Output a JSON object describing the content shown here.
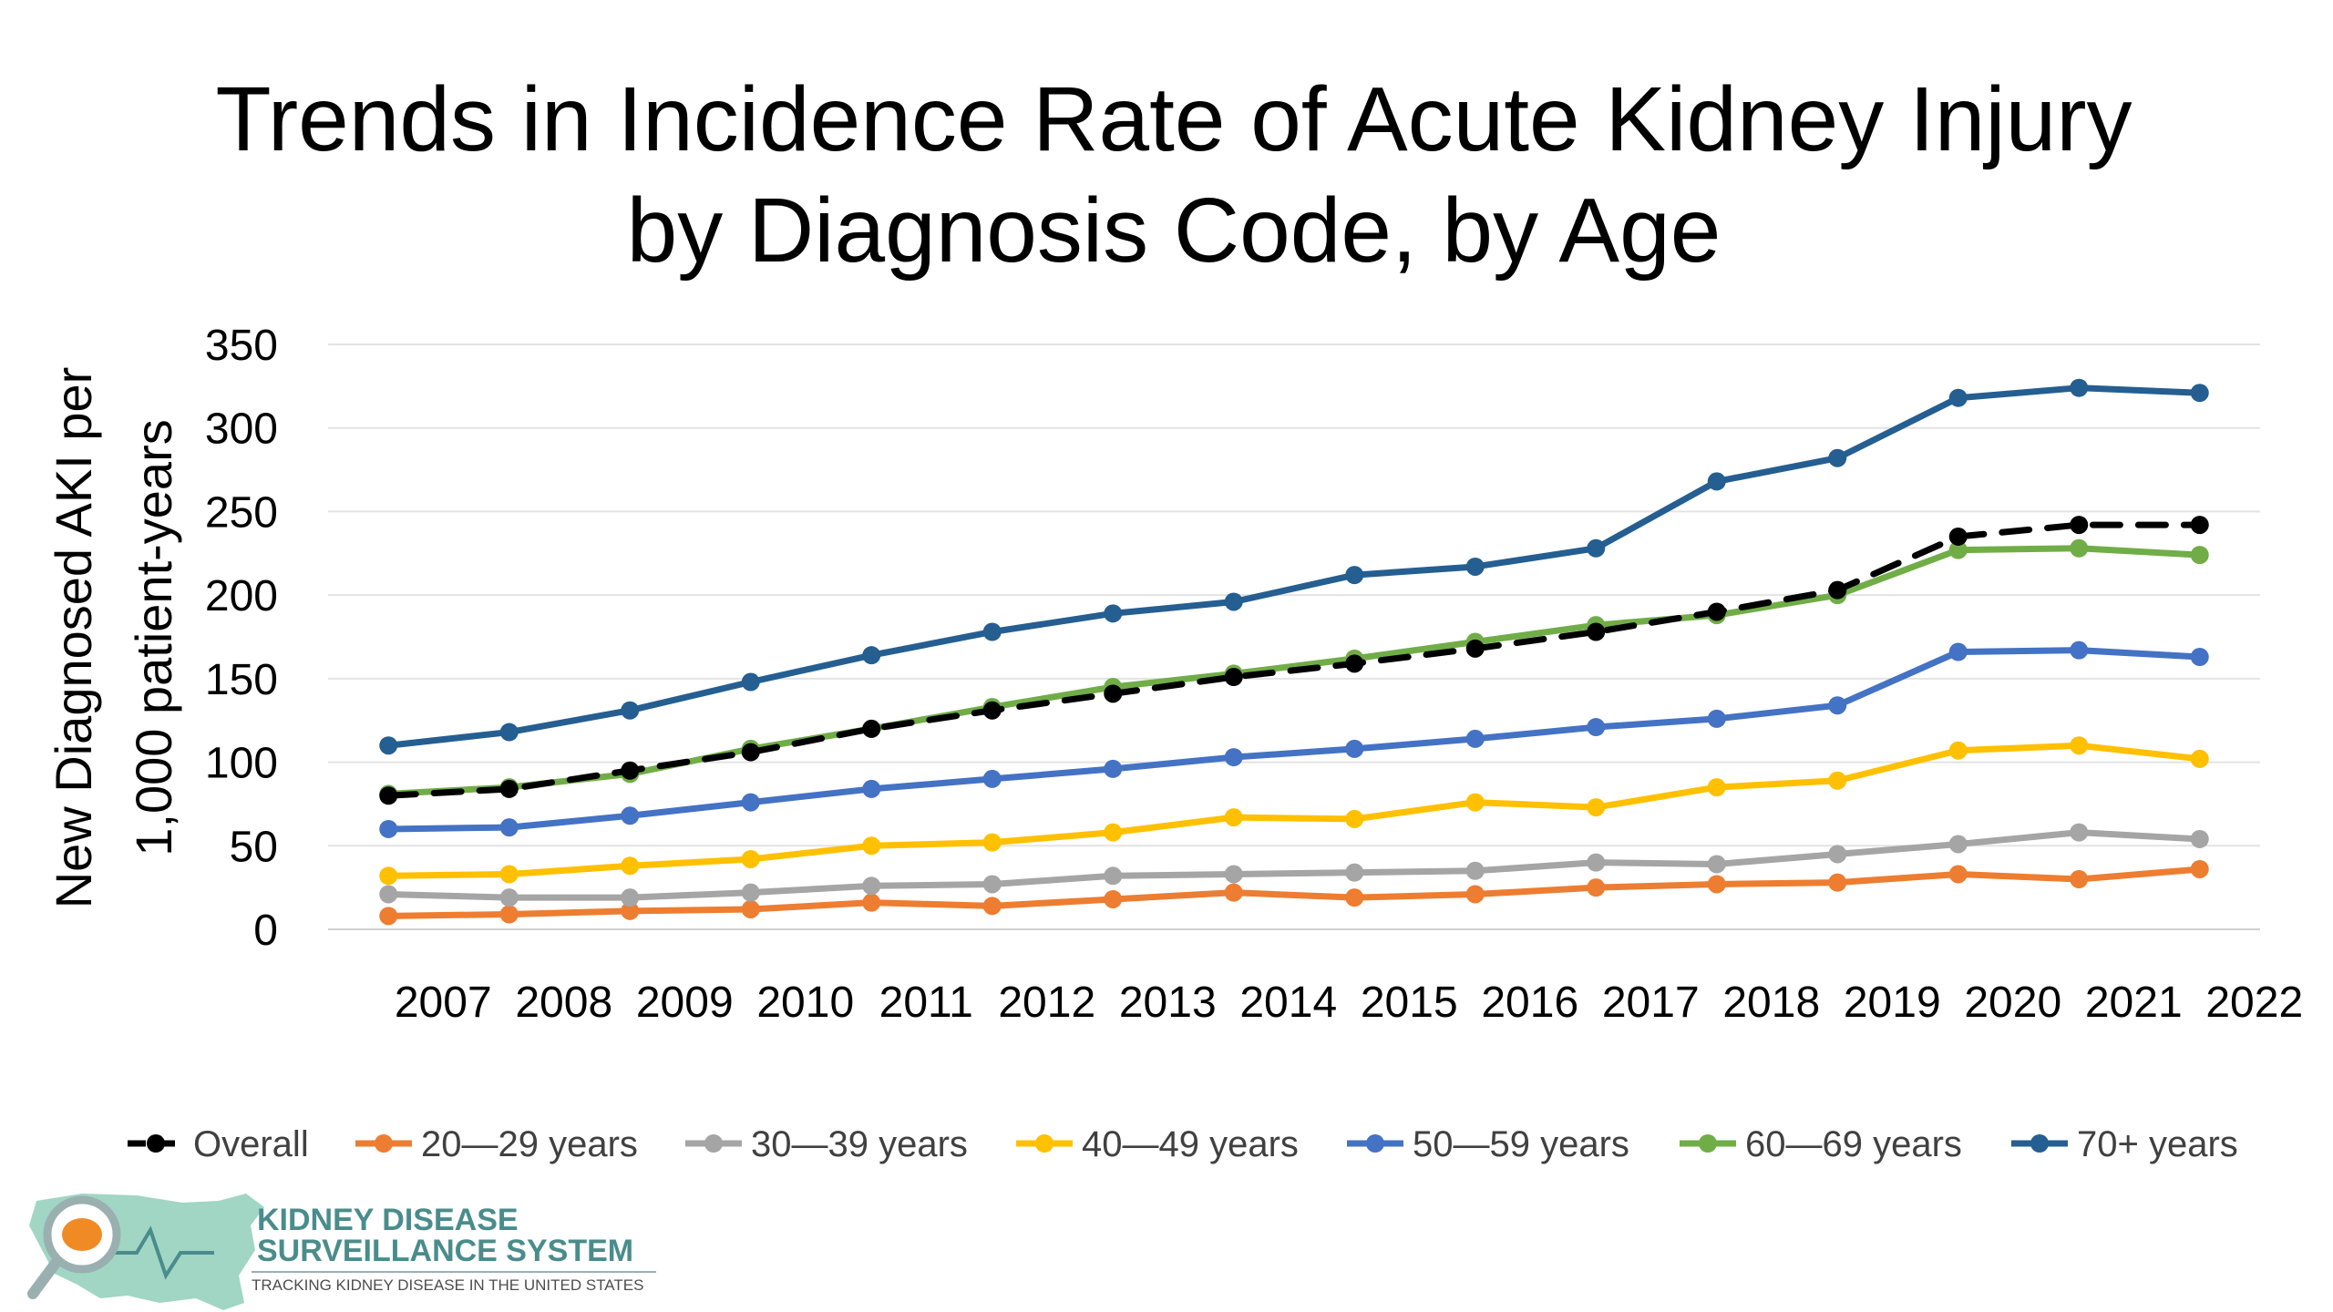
{
  "chart_data": {
    "type": "line",
    "title": [
      "Trends in Incidence Rate of Acute Kidney Injury",
      "by Diagnosis Code, by Age"
    ],
    "ylabel": [
      "New Diagnosed AKI per",
      "1,000 patient-years"
    ],
    "xlabel": "",
    "ylim": [
      0,
      350
    ],
    "yticks": [
      0,
      50,
      100,
      150,
      200,
      250,
      300,
      350
    ],
    "grid": "horizontal",
    "legend": "bottom",
    "categories": [
      "2007",
      "2008",
      "2009",
      "2010",
      "2011",
      "2012",
      "2013",
      "2014",
      "2015",
      "2016",
      "2017",
      "2018",
      "2019",
      "2020",
      "2021",
      "2022"
    ],
    "series": [
      {
        "name": "Overall",
        "color": "#000000",
        "dashed": true,
        "values": [
          80,
          84,
          95,
          106,
          120,
          131,
          141,
          151,
          159,
          168,
          178,
          190,
          203,
          235,
          242,
          242
        ]
      },
      {
        "name": "20—29 years",
        "color": "#ED7D31",
        "dashed": false,
        "values": [
          8,
          9,
          11,
          12,
          16,
          14,
          18,
          22,
          19,
          21,
          25,
          27,
          28,
          33,
          30,
          36
        ]
      },
      {
        "name": "30—39 years",
        "color": "#A5A5A5",
        "dashed": false,
        "values": [
          21,
          19,
          19,
          22,
          26,
          27,
          32,
          33,
          34,
          35,
          40,
          39,
          45,
          51,
          58,
          54
        ]
      },
      {
        "name": "40—49 years",
        "color": "#FFC000",
        "dashed": false,
        "values": [
          32,
          33,
          38,
          42,
          50,
          52,
          58,
          67,
          66,
          76,
          73,
          85,
          89,
          107,
          110,
          102
        ]
      },
      {
        "name": "50—59 years",
        "color": "#4472C4",
        "dashed": false,
        "values": [
          60,
          61,
          68,
          76,
          84,
          90,
          96,
          103,
          108,
          114,
          121,
          126,
          134,
          166,
          167,
          163
        ]
      },
      {
        "name": "60—69 years",
        "color": "#70AD47",
        "dashed": false,
        "values": [
          81,
          85,
          93,
          108,
          120,
          133,
          145,
          153,
          162,
          172,
          182,
          188,
          200,
          227,
          228,
          224
        ]
      },
      {
        "name": "70+ years",
        "color": "#255E91",
        "dashed": false,
        "values": [
          110,
          118,
          131,
          148,
          164,
          178,
          189,
          196,
          212,
          217,
          228,
          268,
          282,
          318,
          324,
          321
        ]
      }
    ]
  },
  "logo": {
    "line1": "KIDNEY DISEASE",
    "line2": "SURVEILLANCE SYSTEM",
    "tagline": "TRACKING KIDNEY DISEASE IN THE UNITED STATES",
    "colors": {
      "map": "#8fcfb8",
      "accent": "#f08a24",
      "text": "#4a8c8c"
    }
  }
}
